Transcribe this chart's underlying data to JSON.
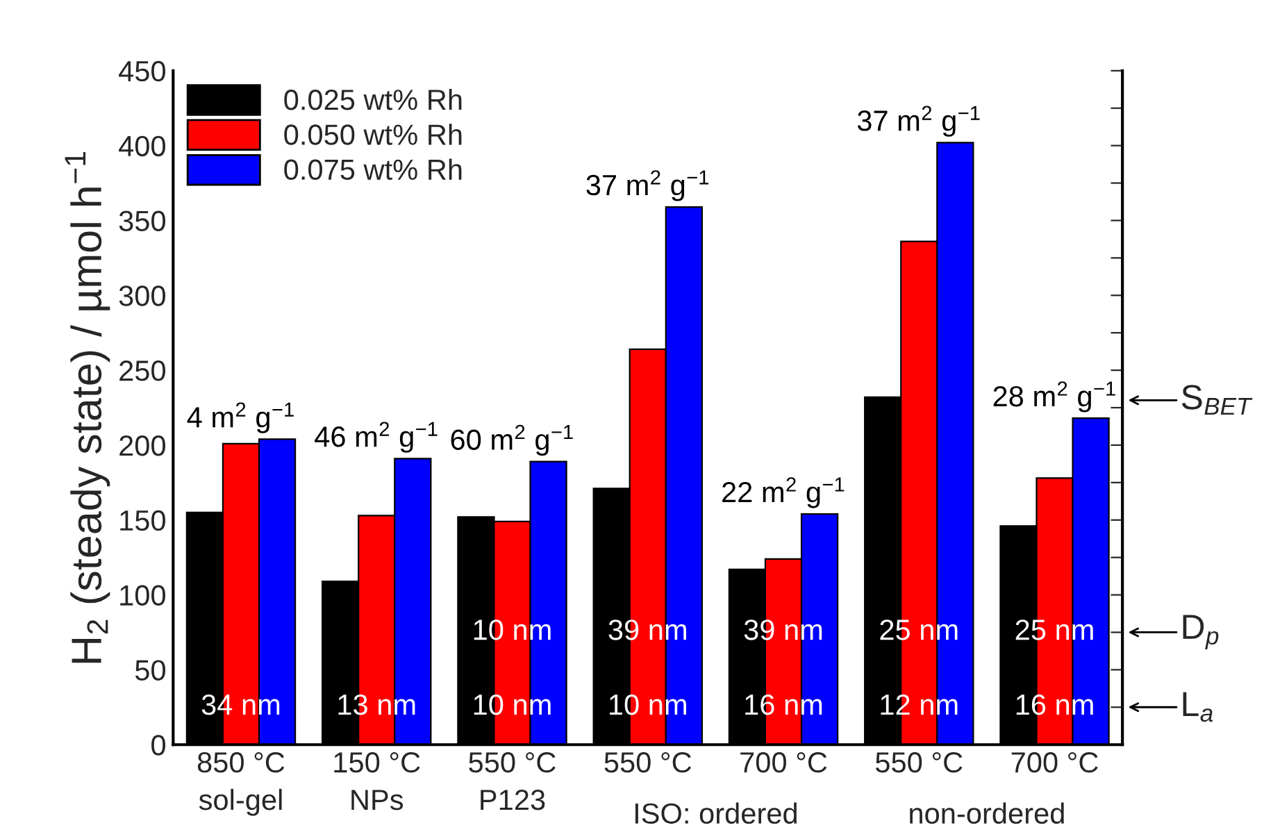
{
  "chart_data": {
    "type": "bar",
    "ylabel": "H$_{2}$ (steady state) / µmol h$^{−1}$",
    "categories": [
      "850 °C\nsol-gel",
      "150 °C\nNPs",
      "550 °C\nP123",
      "550 °C",
      "700 °C",
      "550 °C",
      "700 °C"
    ],
    "series": [
      {
        "name": "0.025 wt% Rh",
        "color": "#000000",
        "values": [
          155,
          109,
          152,
          171,
          117,
          232,
          146
        ]
      },
      {
        "name": "0.050 wt% Rh",
        "color": "#ff0000",
        "values": [
          201,
          153,
          149,
          264,
          124,
          336,
          178
        ]
      },
      {
        "name": "0.075 wt% Rh",
        "color": "#0000ff",
        "values": [
          204,
          191,
          189,
          359,
          154,
          402,
          218
        ]
      }
    ],
    "ylim": [
      0,
      450
    ],
    "yticks": [
      0,
      {
        "value": 25,
        "label": null
      },
      50,
      {
        "value": 75,
        "label": null
      },
      100,
      {
        "value": 125,
        "label": null
      },
      150,
      {
        "value": 175,
        "label": null
      },
      200,
      {
        "value": 225,
        "label": null
      },
      250,
      {
        "value": 275,
        "label": null
      },
      300,
      {
        "value": 325,
        "label": null
      },
      350,
      {
        "value": 375,
        "label": null
      },
      400,
      {
        "value": 425,
        "label": null
      },
      450
    ],
    "legend": "top left",
    "grid": false,
    "annotations": [
      "4 m$^{2}$ g$^{−1}$",
      "34 nm",
      "46 m$^{2}$ g$^{−1}$",
      "13 nm",
      "60 m$^{2}$ g$^{−1}$",
      "10 nm",
      "10 nm",
      "37 m$^{2}$ g$^{−1}$",
      "39 nm",
      "10 nm",
      "22 m$^{2}$ g$^{−1}$",
      "39 nm",
      "16 nm",
      "37 m$^{2}$ g$^{−1}$",
      "25 nm",
      "12 nm",
      "28 m$^{2}$ g$^{−1}$",
      "25 nm",
      "16 nm",
      "S$_{BET}$",
      "D$_{p}$",
      "L$_{a}$",
      "ISO: ordered",
      "non-ordered"
    ]
  }
}
